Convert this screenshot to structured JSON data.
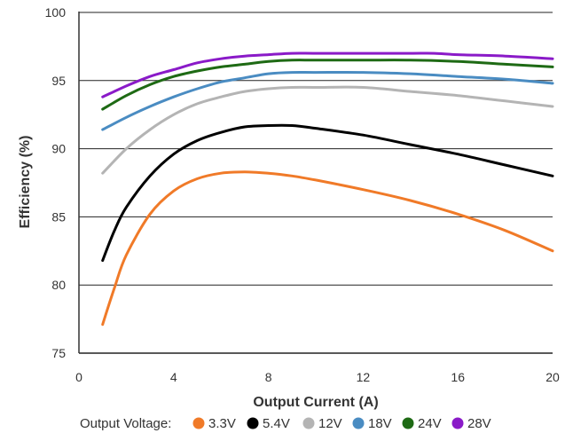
{
  "chart_data": {
    "type": "line",
    "xlabel": "Output Current (A)",
    "ylabel": "Efficiency (%)",
    "xlim": [
      0,
      20
    ],
    "ylim": [
      75,
      100
    ],
    "x_ticks": [
      0,
      4,
      8,
      12,
      16,
      20
    ],
    "y_ticks": [
      75,
      80,
      85,
      90,
      95,
      100
    ],
    "grid": "horizontal",
    "legend": {
      "title": "Output Voltage:",
      "position": "bottom"
    },
    "series": [
      {
        "name": "3.3V",
        "color": "#f07a28",
        "x": [
          1,
          1.5,
          2,
          3,
          4,
          5,
          6,
          7,
          8,
          9,
          10,
          12,
          14,
          16,
          18,
          20
        ],
        "y": [
          77.1,
          79.8,
          82.2,
          85.2,
          86.9,
          87.8,
          88.2,
          88.3,
          88.2,
          88.0,
          87.7,
          87.0,
          86.2,
          85.2,
          84.0,
          82.5
        ]
      },
      {
        "name": "5.4V",
        "color": "#000000",
        "x": [
          1,
          1.5,
          2,
          3,
          4,
          5,
          6,
          7,
          8,
          9,
          10,
          12,
          14,
          16,
          18,
          20
        ],
        "y": [
          81.8,
          84.0,
          85.7,
          88.0,
          89.6,
          90.6,
          91.2,
          91.6,
          91.7,
          91.7,
          91.5,
          91.0,
          90.3,
          89.6,
          88.8,
          88.0
        ]
      },
      {
        "name": "12V",
        "color": "#b4b4b4",
        "x": [
          1,
          2,
          3,
          4,
          5,
          6,
          7,
          8,
          9,
          10,
          12,
          14,
          16,
          18,
          20
        ],
        "y": [
          88.2,
          90.0,
          91.4,
          92.5,
          93.3,
          93.8,
          94.2,
          94.4,
          94.5,
          94.5,
          94.5,
          94.2,
          93.9,
          93.5,
          93.1
        ]
      },
      {
        "name": "18V",
        "color": "#4a8cc2",
        "x": [
          1,
          2,
          3,
          4,
          5,
          6,
          7,
          8,
          9,
          10,
          12,
          14,
          16,
          18,
          20
        ],
        "y": [
          91.4,
          92.3,
          93.1,
          93.8,
          94.4,
          94.9,
          95.2,
          95.5,
          95.6,
          95.6,
          95.6,
          95.5,
          95.3,
          95.1,
          94.8
        ]
      },
      {
        "name": "24V",
        "color": "#1e6a14",
        "x": [
          1,
          2,
          3,
          4,
          5,
          6,
          7,
          8,
          9,
          10,
          12,
          14,
          16,
          18,
          20
        ],
        "y": [
          92.9,
          93.9,
          94.7,
          95.3,
          95.7,
          96.0,
          96.2,
          96.4,
          96.5,
          96.5,
          96.5,
          96.5,
          96.4,
          96.2,
          96.0
        ]
      },
      {
        "name": "28V",
        "color": "#8a1ac8",
        "x": [
          1,
          2,
          3,
          4,
          5,
          6,
          7,
          8,
          9,
          10,
          12,
          14,
          15,
          16,
          18,
          20
        ],
        "y": [
          93.8,
          94.6,
          95.3,
          95.8,
          96.3,
          96.6,
          96.8,
          96.9,
          97.0,
          97.0,
          97.0,
          97.0,
          97.0,
          96.9,
          96.8,
          96.6
        ]
      }
    ]
  }
}
